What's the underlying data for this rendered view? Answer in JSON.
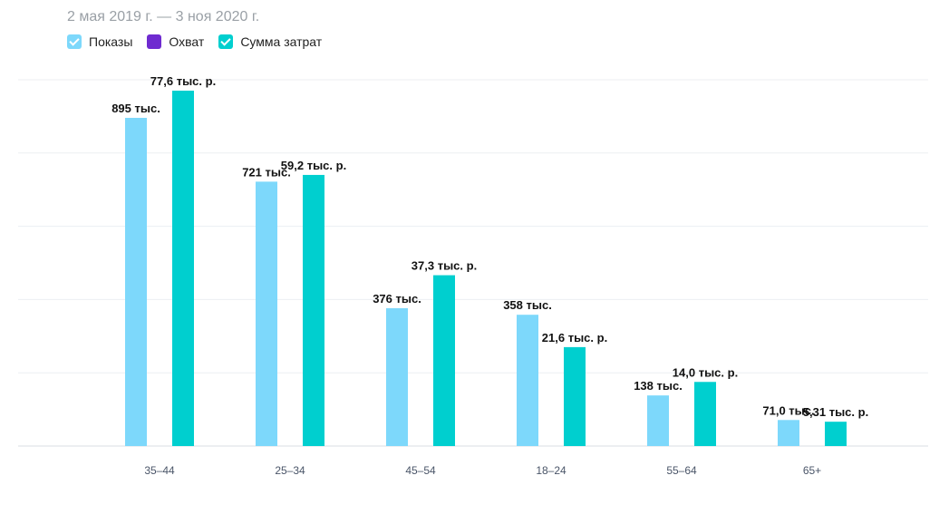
{
  "header": {
    "date_range": "2 мая 2019 г. — 3 ноя 2020 г."
  },
  "legend": [
    {
      "label": "Показы",
      "color": "#7dd8fb",
      "checked": true
    },
    {
      "label": "Охват",
      "color": "#6f2bd0",
      "checked": false
    },
    {
      "label": "Сумма затрат",
      "color": "#00cfcf",
      "checked": true
    }
  ],
  "chart_data": {
    "type": "bar",
    "categories": [
      "35–44",
      "25–34",
      "45–54",
      "18–24",
      "55–64",
      "65+"
    ],
    "series": [
      {
        "name": "Показы",
        "color": "#7dd8fb",
        "values": [
          895000,
          721000,
          376000,
          358000,
          138000,
          71000
        ],
        "labels": [
          "895 тыс.",
          "721 тыс.",
          "376 тыс.",
          "358 тыс.",
          "138 тыс.",
          "71,0 тыс."
        ]
      },
      {
        "name": "Сумма затрат",
        "color": "#00cfcf",
        "values": [
          77600,
          59200,
          37300,
          21600,
          14000,
          5310
        ],
        "labels": [
          "77,6 тыс. р.",
          "59,2 тыс. р.",
          "37,3 тыс. р.",
          "21,6 тыс. р.",
          "14,0 тыс. р.",
          "5,31 тыс. р."
        ]
      }
    ],
    "grid": true,
    "legend_position": "top-left"
  }
}
